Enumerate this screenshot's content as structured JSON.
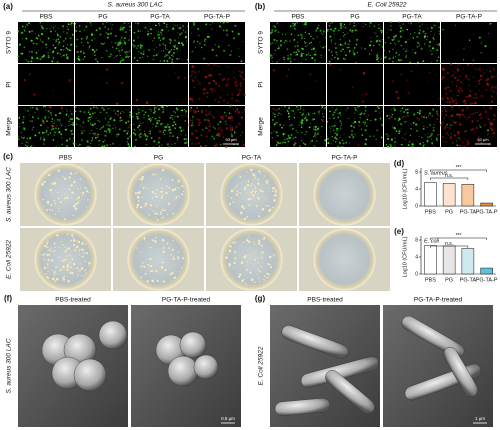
{
  "panels": {
    "a": {
      "label": "(a)",
      "title": "S. aureus 300 LAC",
      "columns": [
        "PBS",
        "PG",
        "PG-TA",
        "PG-TA-P"
      ],
      "rows": [
        "SYTO 9",
        "PI",
        "Merge"
      ],
      "scale_bar": "50 μm"
    },
    "b": {
      "label": "(b)",
      "title": "E. Coli 25922",
      "columns": [
        "PBS",
        "PG",
        "PG-TA",
        "PG-TA-P"
      ],
      "rows": [
        "SYTO 9",
        "PI",
        "Merge"
      ],
      "scale_bar": "50 μm"
    },
    "c": {
      "label": "(c)",
      "columns": [
        "PBS",
        "PG",
        "PG-TA",
        "PG-TA-P"
      ],
      "rows": [
        "S. aureus 300 LAC",
        "E. Coli 25922"
      ]
    },
    "f": {
      "label": "(f)",
      "row": "S. aureus 300 LAC",
      "columns": [
        "PBS-treated",
        "PG-TA-P-treated"
      ],
      "scale_bar": "0.5 μm"
    },
    "g": {
      "label": "(g)",
      "row": "E. Coli 25922",
      "columns": [
        "PBS-treated",
        "PG-TA-P-treated"
      ],
      "scale_bar": "1 μm"
    }
  },
  "chart_data": [
    {
      "type": "bar",
      "label": "(d)",
      "title": "S. aureus",
      "ylabel": "Log10 (CFU/mL)",
      "categories": [
        "PBS",
        "PG",
        "PG-TA",
        "PG-TA-P"
      ],
      "values": [
        5.5,
        5.3,
        5.1,
        0.7
      ],
      "colors": [
        "#ffffff",
        "#fde3cf",
        "#f9c99e",
        "#ef8a2e"
      ],
      "ylim": [
        0,
        8
      ],
      "yticks": [
        0,
        4,
        8
      ],
      "annotations": [
        "n.s.",
        "***"
      ]
    },
    {
      "type": "bar",
      "label": "(e)",
      "title": "E. coli",
      "ylabel": "Log10 (CFU/mL)",
      "categories": [
        "PBS",
        "PG",
        "PG-TA",
        "PG-TA-P"
      ],
      "values": [
        6.7,
        6.6,
        6.0,
        1.4
      ],
      "colors": [
        "#ffffff",
        "#e6e6e6",
        "#cfe9f1",
        "#5bc3dc"
      ],
      "ylim": [
        0,
        8
      ],
      "yticks": [
        0,
        4,
        8
      ],
      "annotations": [
        "n.s.",
        "***"
      ]
    }
  ]
}
